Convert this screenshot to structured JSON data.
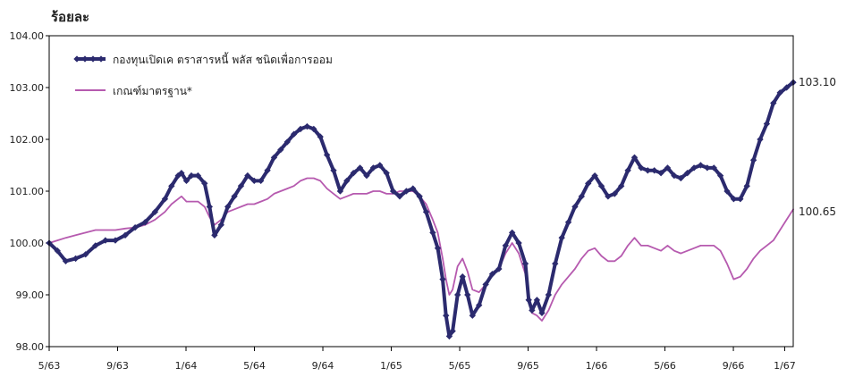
{
  "chart_data": {
    "type": "line",
    "ylabel": "ร้อยละ",
    "ylim": [
      98.0,
      104.0
    ],
    "yticks": [
      "98.00",
      "99.00",
      "100.00",
      "101.00",
      "102.00",
      "103.00",
      "104.00"
    ],
    "xlim": [
      0,
      43.5
    ],
    "xticks": [
      {
        "x": 0,
        "label": "5/63"
      },
      {
        "x": 4,
        "label": "9/63"
      },
      {
        "x": 8,
        "label": "1/64"
      },
      {
        "x": 12,
        "label": "5/64"
      },
      {
        "x": 16,
        "label": "9/64"
      },
      {
        "x": 20,
        "label": "1/65"
      },
      {
        "x": 24,
        "label": "5/65"
      },
      {
        "x": 28,
        "label": "9/65"
      },
      {
        "x": 32,
        "label": "1/66"
      },
      {
        "x": 36,
        "label": "5/66"
      },
      {
        "x": 40,
        "label": "9/66"
      },
      {
        "x": 43,
        "label": "1/67"
      }
    ],
    "grid": false,
    "legend_position": "top-left",
    "series": [
      {
        "name": "กองทุนเปิดเค ตราสารหนี้ พลัส ชนิดเพื่อการออม",
        "color": "#2B2A6E",
        "end_label": "103.10",
        "points": [
          [
            0,
            100.0
          ],
          [
            0.5,
            99.85
          ],
          [
            1.0,
            99.65
          ],
          [
            1.6,
            99.7
          ],
          [
            2.2,
            99.78
          ],
          [
            2.8,
            99.95
          ],
          [
            3.4,
            100.05
          ],
          [
            4.0,
            100.05
          ],
          [
            4.6,
            100.15
          ],
          [
            5.2,
            100.3
          ],
          [
            5.8,
            100.4
          ],
          [
            6.4,
            100.6
          ],
          [
            7.0,
            100.85
          ],
          [
            7.4,
            101.1
          ],
          [
            7.8,
            101.3
          ],
          [
            8.0,
            101.35
          ],
          [
            8.3,
            101.2
          ],
          [
            8.6,
            101.3
          ],
          [
            9.0,
            101.3
          ],
          [
            9.4,
            101.15
          ],
          [
            9.7,
            100.7
          ],
          [
            10.0,
            100.15
          ],
          [
            10.4,
            100.35
          ],
          [
            10.8,
            100.7
          ],
          [
            11.2,
            100.9
          ],
          [
            11.6,
            101.1
          ],
          [
            12.0,
            101.3
          ],
          [
            12.4,
            101.2
          ],
          [
            12.8,
            101.2
          ],
          [
            13.2,
            101.4
          ],
          [
            13.6,
            101.65
          ],
          [
            14.0,
            101.8
          ],
          [
            14.4,
            101.95
          ],
          [
            14.8,
            102.1
          ],
          [
            15.2,
            102.2
          ],
          [
            15.6,
            102.25
          ],
          [
            16.0,
            102.2
          ],
          [
            16.4,
            102.05
          ],
          [
            16.8,
            101.7
          ],
          [
            17.2,
            101.4
          ],
          [
            17.6,
            101.0
          ],
          [
            18.0,
            101.2
          ],
          [
            18.4,
            101.35
          ],
          [
            18.8,
            101.45
          ],
          [
            19.2,
            101.3
          ],
          [
            19.6,
            101.45
          ],
          [
            20.0,
            101.5
          ],
          [
            20.4,
            101.35
          ],
          [
            20.8,
            101.0
          ],
          [
            21.2,
            100.9
          ],
          [
            21.6,
            101.0
          ],
          [
            22.0,
            101.05
          ],
          [
            22.4,
            100.9
          ],
          [
            22.8,
            100.6
          ],
          [
            23.2,
            100.2
          ],
          [
            23.5,
            99.9
          ],
          [
            23.8,
            99.3
          ],
          [
            24.0,
            98.6
          ],
          [
            24.2,
            98.2
          ],
          [
            24.4,
            98.3
          ],
          [
            24.7,
            99.0
          ],
          [
            25.0,
            99.35
          ],
          [
            25.3,
            99.0
          ],
          [
            25.6,
            98.6
          ],
          [
            26.0,
            98.8
          ],
          [
            26.4,
            99.2
          ],
          [
            26.8,
            99.4
          ],
          [
            27.2,
            99.5
          ],
          [
            27.6,
            99.95
          ],
          [
            28.0,
            100.2
          ],
          [
            28.4,
            100.0
          ],
          [
            28.8,
            99.6
          ],
          [
            29.0,
            98.9
          ],
          [
            29.2,
            98.7
          ],
          [
            29.5,
            98.9
          ],
          [
            29.8,
            98.65
          ],
          [
            30.2,
            99.0
          ],
          [
            30.6,
            99.6
          ],
          [
            31.0,
            100.1
          ],
          [
            31.4,
            100.4
          ],
          [
            31.8,
            100.7
          ],
          [
            32.2,
            100.9
          ],
          [
            32.6,
            101.15
          ],
          [
            33.0,
            101.3
          ],
          [
            33.4,
            101.1
          ],
          [
            33.8,
            100.9
          ],
          [
            34.2,
            100.95
          ],
          [
            34.6,
            101.1
          ],
          [
            35.0,
            101.4
          ],
          [
            35.4,
            101.65
          ],
          [
            35.8,
            101.45
          ],
          [
            36.2,
            101.4
          ],
          [
            36.6,
            101.4
          ],
          [
            37.0,
            101.35
          ],
          [
            37.4,
            101.45
          ],
          [
            37.8,
            101.3
          ],
          [
            38.2,
            101.25
          ],
          [
            38.6,
            101.35
          ],
          [
            39.0,
            101.45
          ],
          [
            39.4,
            101.5
          ],
          [
            39.8,
            101.45
          ],
          [
            40.2,
            101.45
          ],
          [
            40.6,
            101.3
          ],
          [
            41.0,
            101.0
          ],
          [
            41.4,
            100.85
          ],
          [
            41.8,
            100.85
          ],
          [
            42.2,
            101.1
          ],
          [
            42.6,
            101.6
          ],
          [
            43.0,
            102.0
          ],
          [
            43.4,
            102.3
          ],
          [
            43.8,
            102.7
          ],
          [
            44.2,
            102.9
          ],
          [
            44.6,
            103.0
          ],
          [
            45.0,
            103.1
          ]
        ]
      },
      {
        "name": "เกณฑ์มาตรฐาน*",
        "color": "#B65AAF",
        "end_label": "100.65",
        "points": [
          [
            0,
            100.0
          ],
          [
            0.5,
            100.05
          ],
          [
            1.0,
            100.1
          ],
          [
            1.6,
            100.15
          ],
          [
            2.2,
            100.2
          ],
          [
            2.8,
            100.25
          ],
          [
            3.4,
            100.25
          ],
          [
            4.0,
            100.25
          ],
          [
            4.6,
            100.28
          ],
          [
            5.2,
            100.3
          ],
          [
            5.8,
            100.35
          ],
          [
            6.4,
            100.45
          ],
          [
            7.0,
            100.6
          ],
          [
            7.4,
            100.75
          ],
          [
            7.8,
            100.85
          ],
          [
            8.0,
            100.9
          ],
          [
            8.3,
            100.8
          ],
          [
            8.6,
            100.8
          ],
          [
            9.0,
            100.8
          ],
          [
            9.4,
            100.7
          ],
          [
            9.7,
            100.5
          ],
          [
            10.0,
            100.35
          ],
          [
            10.4,
            100.45
          ],
          [
            10.8,
            100.6
          ],
          [
            11.2,
            100.65
          ],
          [
            11.6,
            100.7
          ],
          [
            12.0,
            100.75
          ],
          [
            12.4,
            100.75
          ],
          [
            12.8,
            100.8
          ],
          [
            13.2,
            100.85
          ],
          [
            13.6,
            100.95
          ],
          [
            14.0,
            101.0
          ],
          [
            14.4,
            101.05
          ],
          [
            14.8,
            101.1
          ],
          [
            15.2,
            101.2
          ],
          [
            15.6,
            101.25
          ],
          [
            16.0,
            101.25
          ],
          [
            16.4,
            101.2
          ],
          [
            16.8,
            101.05
          ],
          [
            17.2,
            100.95
          ],
          [
            17.6,
            100.85
          ],
          [
            18.0,
            100.9
          ],
          [
            18.4,
            100.95
          ],
          [
            18.8,
            100.95
          ],
          [
            19.2,
            100.95
          ],
          [
            19.6,
            101.0
          ],
          [
            20.0,
            101.0
          ],
          [
            20.4,
            100.95
          ],
          [
            20.8,
            100.95
          ],
          [
            21.2,
            101.0
          ],
          [
            21.6,
            101.0
          ],
          [
            22.0,
            101.0
          ],
          [
            22.4,
            100.9
          ],
          [
            22.8,
            100.75
          ],
          [
            23.2,
            100.45
          ],
          [
            23.5,
            100.2
          ],
          [
            23.8,
            99.7
          ],
          [
            24.0,
            99.3
          ],
          [
            24.2,
            99.0
          ],
          [
            24.4,
            99.1
          ],
          [
            24.7,
            99.55
          ],
          [
            25.0,
            99.7
          ],
          [
            25.3,
            99.45
          ],
          [
            25.6,
            99.1
          ],
          [
            26.0,
            99.05
          ],
          [
            26.4,
            99.2
          ],
          [
            26.8,
            99.4
          ],
          [
            27.2,
            99.5
          ],
          [
            27.6,
            99.8
          ],
          [
            28.0,
            100.0
          ],
          [
            28.4,
            99.8
          ],
          [
            28.8,
            99.4
          ],
          [
            29.0,
            98.9
          ],
          [
            29.2,
            98.65
          ],
          [
            29.5,
            98.6
          ],
          [
            29.8,
            98.5
          ],
          [
            30.2,
            98.7
          ],
          [
            30.6,
            99.0
          ],
          [
            31.0,
            99.2
          ],
          [
            31.4,
            99.35
          ],
          [
            31.8,
            99.5
          ],
          [
            32.2,
            99.7
          ],
          [
            32.6,
            99.85
          ],
          [
            33.0,
            99.9
          ],
          [
            33.4,
            99.75
          ],
          [
            33.8,
            99.65
          ],
          [
            34.2,
            99.65
          ],
          [
            34.6,
            99.75
          ],
          [
            35.0,
            99.95
          ],
          [
            35.4,
            100.1
          ],
          [
            35.8,
            99.95
          ],
          [
            36.2,
            99.95
          ],
          [
            36.6,
            99.9
          ],
          [
            37.0,
            99.85
          ],
          [
            37.4,
            99.95
          ],
          [
            37.8,
            99.85
          ],
          [
            38.2,
            99.8
          ],
          [
            38.6,
            99.85
          ],
          [
            39.0,
            99.9
          ],
          [
            39.4,
            99.95
          ],
          [
            39.8,
            99.95
          ],
          [
            40.2,
            99.95
          ],
          [
            40.6,
            99.85
          ],
          [
            41.0,
            99.6
          ],
          [
            41.4,
            99.3
          ],
          [
            41.8,
            99.35
          ],
          [
            42.2,
            99.5
          ],
          [
            42.6,
            99.7
          ],
          [
            43.0,
            99.85
          ],
          [
            43.4,
            99.95
          ],
          [
            43.8,
            100.05
          ],
          [
            44.2,
            100.25
          ],
          [
            44.6,
            100.45
          ],
          [
            45.0,
            100.65
          ]
        ]
      }
    ]
  }
}
